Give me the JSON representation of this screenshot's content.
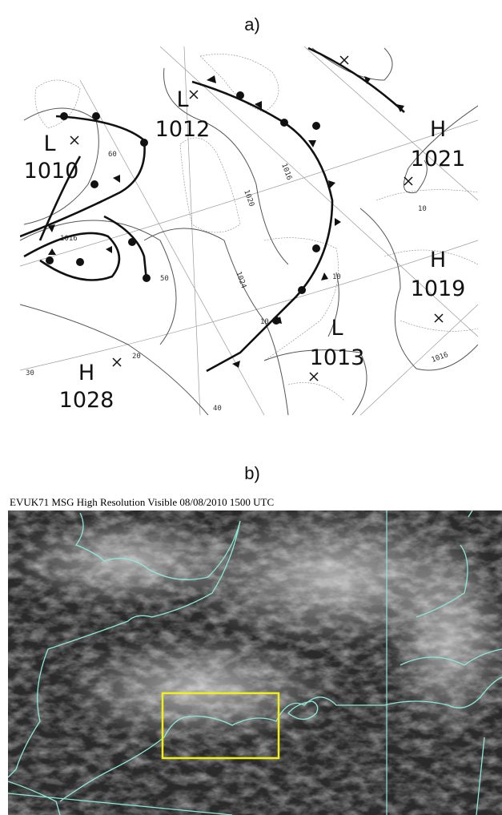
{
  "panel_a": {
    "label": "a)",
    "pressure_centres": [
      {
        "type": "L",
        "value": "1012"
      },
      {
        "type": "L",
        "value": "1010"
      },
      {
        "type": "H",
        "value": "1021"
      },
      {
        "type": "H",
        "value": "1019"
      },
      {
        "type": "L",
        "value": "1013"
      },
      {
        "type": "H",
        "value": "1028"
      }
    ],
    "isobar_labels": [
      "1016",
      "1020",
      "1024",
      "1016",
      "60",
      "50",
      "20",
      "30",
      "40",
      "10",
      "10",
      "1016",
      "10"
    ]
  },
  "panel_b": {
    "label": "b)",
    "header": "EVUK71 MSG High Resolution Visible 08/08/2010 1500 UTC"
  }
}
